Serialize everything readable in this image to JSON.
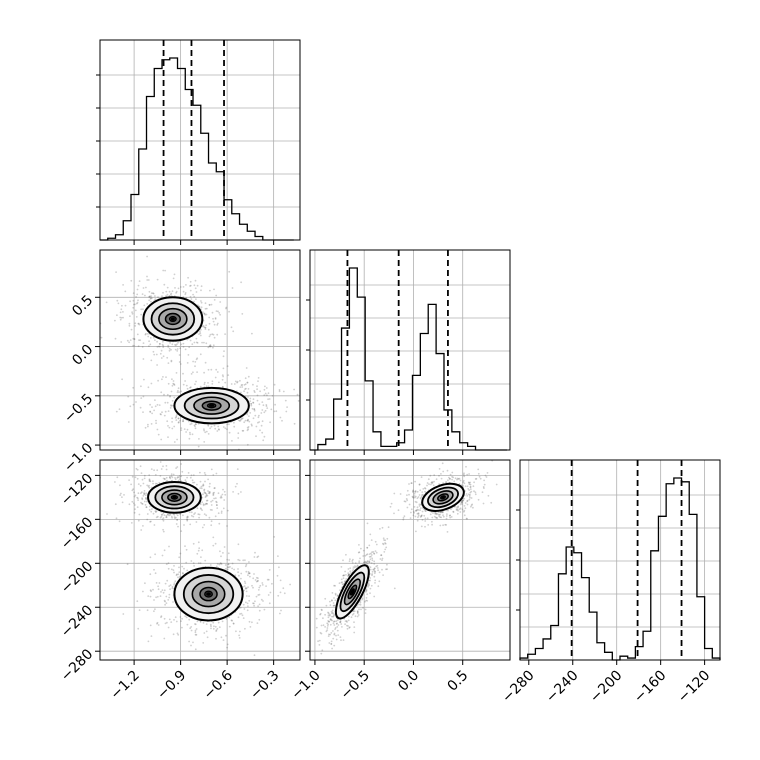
{
  "chart_data": {
    "type": "corner",
    "grid": true,
    "parameters": [
      {
        "ticks": [
          -1.2,
          -0.9,
          -0.6,
          -0.3
        ],
        "tick_labels": [
          "−1.2",
          "−0.9",
          "−0.6",
          "−0.3"
        ],
        "range": [
          -1.42,
          -0.13
        ],
        "quantiles": [
          -1.01,
          -0.83,
          -0.62
        ]
      },
      {
        "ticks": [
          -1.0,
          -0.5,
          0.0,
          0.5
        ],
        "tick_labels": [
          "−1.0",
          "−0.5",
          "0.0",
          "0.5"
        ],
        "range": [
          -1.05,
          0.98
        ],
        "quantiles": [
          -0.67,
          -0.15,
          0.35
        ]
      },
      {
        "ticks": [
          -280,
          -240,
          -200,
          -160,
          -120
        ],
        "tick_labels": [
          "−280",
          "−240",
          "−200",
          "−160",
          "−120"
        ],
        "range": [
          -288,
          -106
        ],
        "quantiles": [
          -241,
          -181,
          -141
        ]
      }
    ],
    "histograms": [
      {
        "param": 0,
        "bins": [
          -1.42,
          -1.37,
          -1.32,
          -1.27,
          -1.22,
          -1.17,
          -1.12,
          -1.07,
          -1.02,
          -0.97,
          -0.92,
          -0.87,
          -0.82,
          -0.77,
          -0.72,
          -0.67,
          -0.62,
          -0.57,
          -0.52,
          -0.47,
          -0.42,
          -0.37,
          -0.32,
          -0.27,
          -0.22,
          -0.17
        ],
        "counts": [
          0.0,
          0.01,
          0.03,
          0.11,
          0.26,
          0.52,
          0.82,
          0.98,
          1.03,
          1.04,
          0.98,
          0.86,
          0.77,
          0.61,
          0.44,
          0.39,
          0.23,
          0.15,
          0.09,
          0.05,
          0.02,
          0.0,
          0.0,
          0.0,
          0.0
        ]
      },
      {
        "param": 1,
        "bins": [
          -1.05,
          -0.97,
          -0.89,
          -0.81,
          -0.73,
          -0.65,
          -0.57,
          -0.49,
          -0.41,
          -0.33,
          -0.25,
          -0.17,
          -0.09,
          -0.01,
          0.07,
          0.15,
          0.23,
          0.31,
          0.39,
          0.47,
          0.55,
          0.63,
          0.71,
          0.79,
          0.87,
          0.95
        ],
        "counts": [
          0.0,
          0.03,
          0.06,
          0.28,
          0.67,
          1.0,
          0.84,
          0.38,
          0.1,
          0.02,
          0.02,
          0.04,
          0.11,
          0.41,
          0.64,
          0.8,
          0.53,
          0.22,
          0.1,
          0.04,
          0.02,
          0.0,
          0.0,
          0.0,
          0.0
        ]
      },
      {
        "param": 2,
        "bins": [
          -288,
          -281,
          -274,
          -267,
          -260,
          -253,
          -246,
          -239,
          -232,
          -225,
          -218,
          -211,
          -204,
          -197,
          -190,
          -183,
          -176,
          -169,
          -162,
          -155,
          -148,
          -141,
          -134,
          -127,
          -120,
          -113,
          -106
        ],
        "counts": [
          0.01,
          0.03,
          0.06,
          0.11,
          0.18,
          0.45,
          0.59,
          0.56,
          0.43,
          0.25,
          0.09,
          0.04,
          0.0,
          0.02,
          0.01,
          0.07,
          0.15,
          0.57,
          0.75,
          0.92,
          0.95,
          0.93,
          0.76,
          0.33,
          0.06,
          0.01
        ]
      }
    ],
    "scatter_panels": [
      {
        "x_param": 0,
        "y_param": 1,
        "modes": [
          {
            "cx": -0.95,
            "cy": 0.28,
            "rx": 0.19,
            "ry": 0.22
          },
          {
            "cx": -0.7,
            "cy": -0.6,
            "rx": 0.24,
            "ry": 0.18
          }
        ]
      },
      {
        "x_param": 0,
        "y_param": 2,
        "modes": [
          {
            "cx": -0.94,
            "cy": -140,
            "rx": 0.17,
            "ry": 14
          },
          {
            "cx": -0.72,
            "cy": -228,
            "rx": 0.22,
            "ry": 24
          }
        ]
      },
      {
        "x_param": 1,
        "y_param": 2,
        "modes": [
          {
            "cx": 0.3,
            "cy": -140,
            "rx": 0.22,
            "ry": 11,
            "tilt": -20
          },
          {
            "cx": -0.62,
            "cy": -226,
            "rx": 0.1,
            "ry": 27,
            "tilt": 28
          }
        ]
      }
    ]
  }
}
